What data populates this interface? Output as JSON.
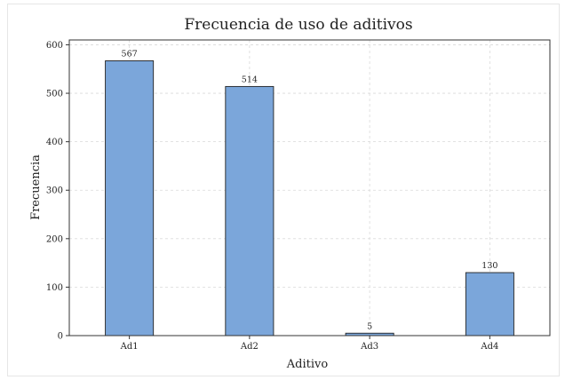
{
  "chart_data": {
    "type": "bar",
    "title": "Frecuencia de uso de aditivos",
    "xlabel": "Aditivo",
    "ylabel": "Frecuencia",
    "categories": [
      "Ad1",
      "Ad2",
      "Ad3",
      "Ad4"
    ],
    "values": [
      567,
      514,
      5,
      130
    ],
    "data_labels": [
      "567",
      "514",
      "5",
      "130"
    ],
    "ylim": [
      0,
      610
    ],
    "yticks": [
      0,
      100,
      200,
      300,
      400,
      500,
      600
    ],
    "grid": true,
    "legend": "none",
    "bar_color": "#7ba6da",
    "bar_edge_color": "#222222"
  }
}
